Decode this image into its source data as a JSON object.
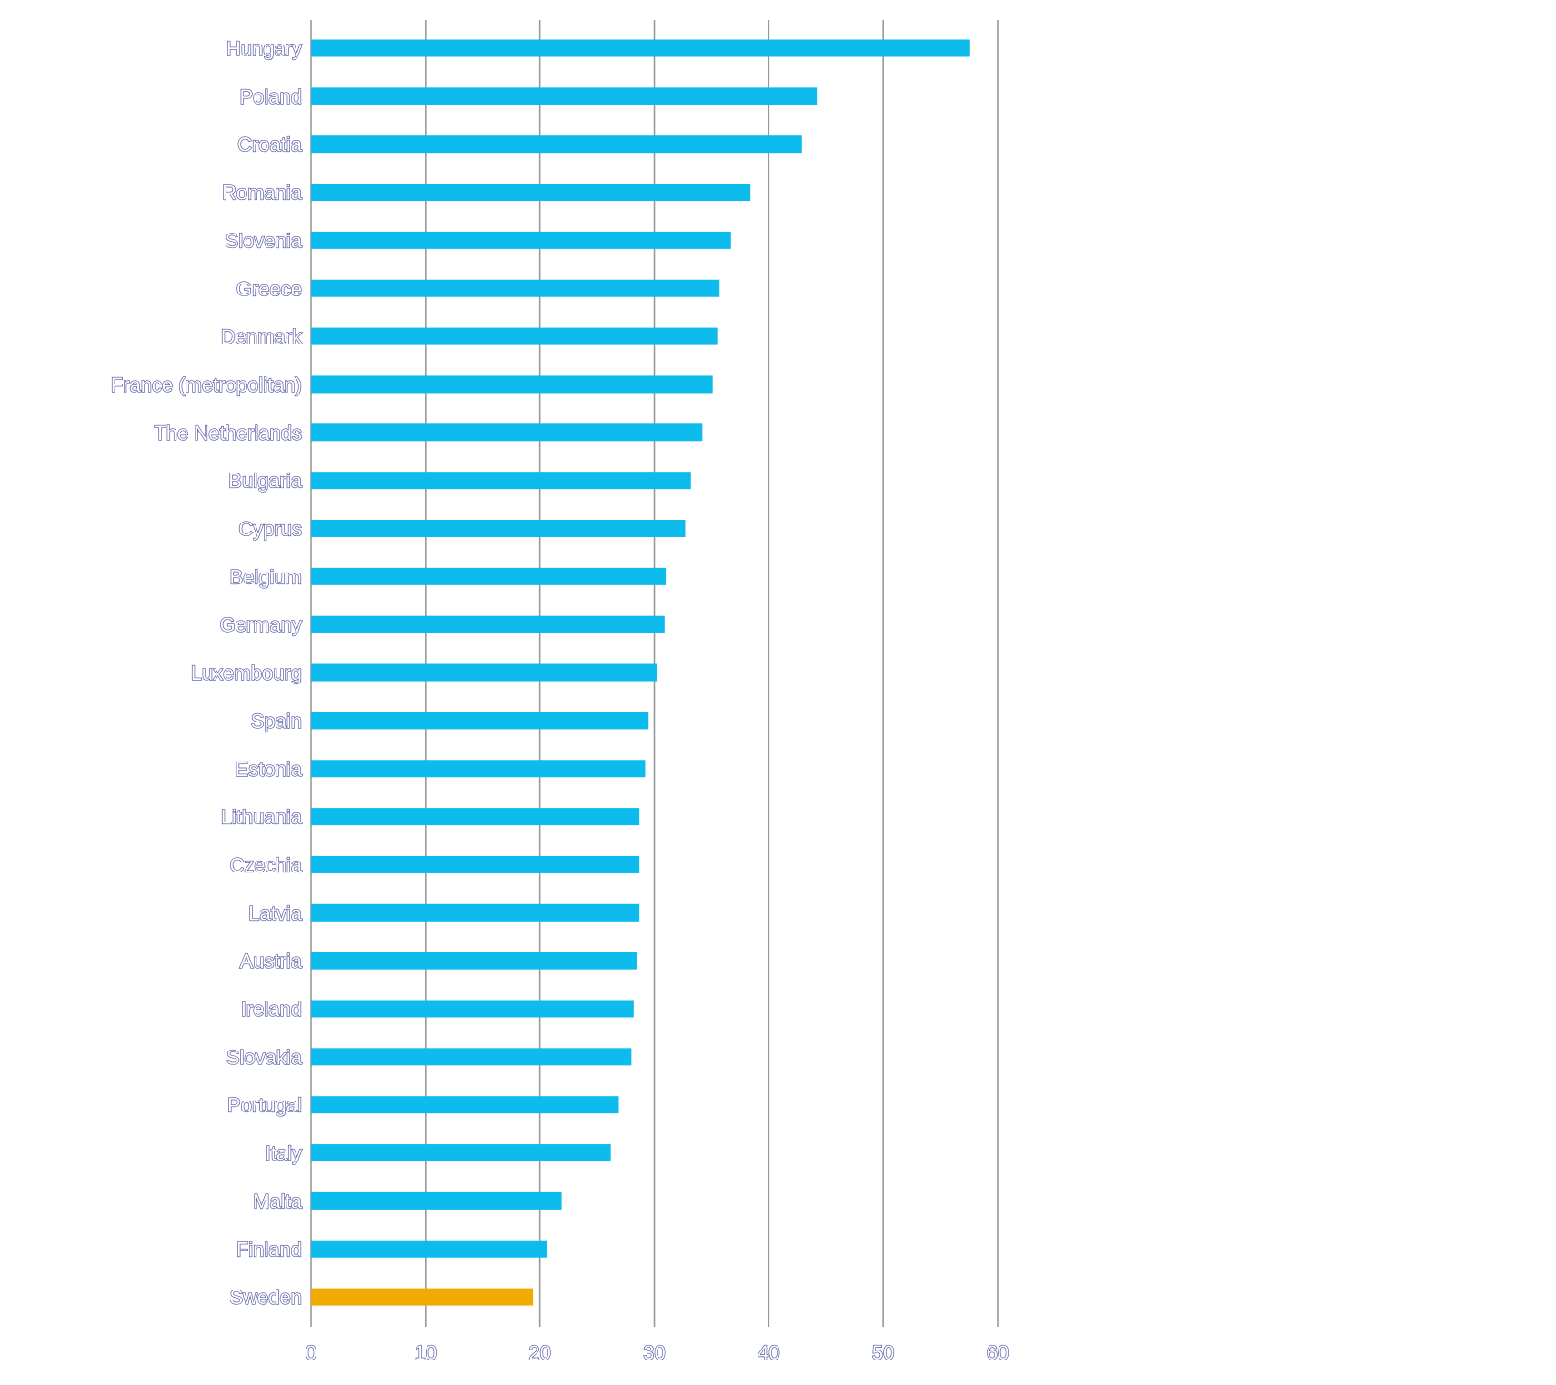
{
  "chart_data": {
    "type": "bar",
    "orientation": "horizontal",
    "categories": [
      "Hungary",
      "Poland",
      "Croatia",
      "Romania",
      "Slovenia",
      "Greece",
      "Denmark",
      "France (metropolitan)",
      "The Netherlands",
      "Bulgaria",
      "Cyprus",
      "Belgium",
      "Germany",
      "Luxembourg",
      "Spain",
      "Estonia",
      "Lithuania",
      "Czechia",
      "Latvia",
      "Austria",
      "Ireland",
      "Slovakia",
      "Portugal",
      "Italy",
      "Malta",
      "Finland",
      "Sweden"
    ],
    "values": [
      57.6,
      44.2,
      42.9,
      38.4,
      36.7,
      35.7,
      35.5,
      35.1,
      34.2,
      33.2,
      32.7,
      31.0,
      30.9,
      30.2,
      29.5,
      29.2,
      28.7,
      28.7,
      28.7,
      28.5,
      28.2,
      28.0,
      26.9,
      26.2,
      21.9,
      20.6,
      19.4
    ],
    "xlim": [
      0,
      60
    ],
    "x_ticks": [
      "0",
      "10",
      "20",
      "30",
      "40",
      "50",
      "60"
    ],
    "grid": "vertical",
    "colors": {
      "bar": "#0DBBEC",
      "highlight": "#F0AA00",
      "grid": "#999999",
      "label_outline": "#4A4E9A"
    },
    "highlight_category": "Sweden",
    "title": "",
    "xlabel": "",
    "ylabel": ""
  }
}
